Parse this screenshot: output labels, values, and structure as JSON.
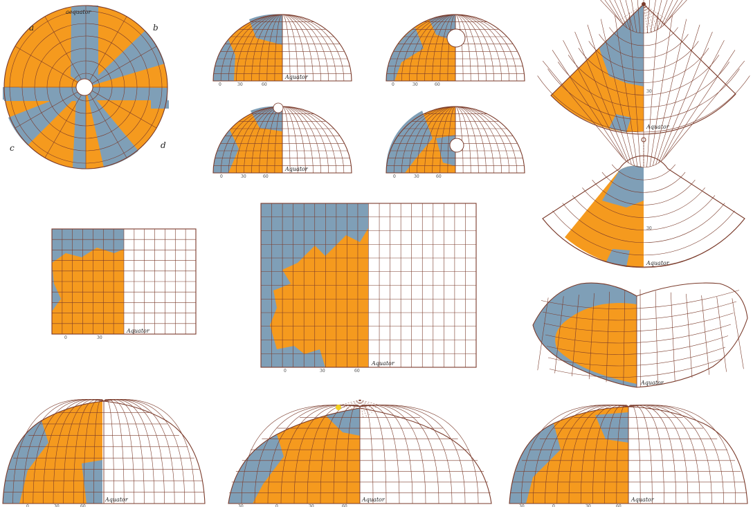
{
  "colors": {
    "land": "#F59A1E",
    "sea": "#7F9FB7",
    "gridline": "#7a3a2a",
    "empty": "#ffffff",
    "marker": "#F2D020"
  },
  "panels": [
    {
      "name": "panel-polar-composite",
      "corner_labels": [
        "a",
        "b",
        "c",
        "d"
      ],
      "edge_text": "aequator"
    },
    {
      "name": "panel-semi-top-1",
      "equator_label": "Aquator",
      "ticks": [
        "0",
        "30",
        "60"
      ]
    },
    {
      "name": "panel-semi-top-2",
      "ticks": [
        "0",
        "30",
        "60"
      ]
    },
    {
      "name": "panel-semi-mid-1",
      "equator_label": "Aquator",
      "ticks": [
        "0",
        "30",
        "60"
      ]
    },
    {
      "name": "panel-semi-mid-2",
      "ticks": [
        "0",
        "30",
        "60"
      ]
    },
    {
      "name": "panel-cone-1",
      "equator_label": "Aquator",
      "ticks": [
        "30"
      ]
    },
    {
      "name": "panel-cone-2",
      "equator_label": "Aquator",
      "ticks": [
        "30"
      ]
    },
    {
      "name": "panel-rect-small",
      "equator_label": "Aquator",
      "ticks": [
        "0",
        "30"
      ]
    },
    {
      "name": "panel-rect-large",
      "equator_label": "Aquator",
      "ticks": [
        "0",
        "30",
        "60"
      ]
    },
    {
      "name": "panel-lens",
      "equator_label": "Aquator"
    },
    {
      "name": "panel-bottom-1",
      "equator_label": "Aquator",
      "ticks": [
        "0",
        "30",
        "60"
      ]
    },
    {
      "name": "panel-bottom-2",
      "equator_label": "Aquator",
      "ticks": [
        "30",
        "0",
        "30",
        "60"
      ]
    },
    {
      "name": "panel-bottom-3",
      "equator_label": "Aquator",
      "ticks": [
        "30",
        "0",
        "30",
        "60"
      ]
    }
  ]
}
